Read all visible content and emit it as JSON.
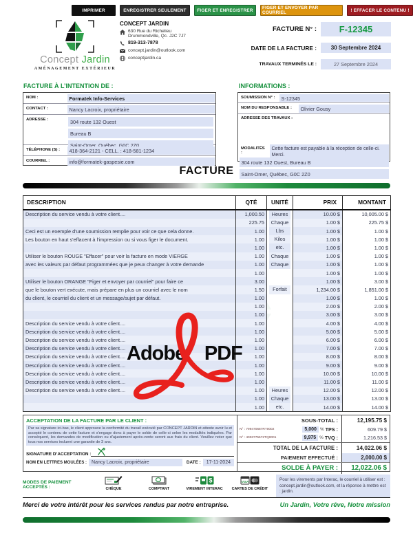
{
  "colors": {
    "accent_green": "#15903c",
    "button_green": "#2a9247",
    "button_orange": "#dd940e",
    "button_red": "#9e1c21",
    "field_bg": "#dbe2f5",
    "adobe_red": "#e8211d"
  },
  "buttons": [
    {
      "label": "IMPRIMER"
    },
    {
      "label": "ENREGISTRER SEULEMENT"
    },
    {
      "label": "FIGER ET ENREGISTRER"
    },
    {
      "label": "FIGER ET ENVOYER PAR COURRIEL"
    },
    {
      "label": "! EFFACER LE CONTENU !"
    }
  ],
  "company": {
    "logo_word_gray": "Concept",
    "logo_word_green": "Jardin",
    "tagline": "AMÉNAGEMENT EXTÉRIEUR",
    "name": "CONCEPT JARDIN",
    "address_line1": "630 Rue du Richelieu",
    "address_line2": "Drummondville, Qc. J2C 7J7",
    "phone": "819-313-7878",
    "email": "concept.jardin@outlook.com",
    "website": "conceptjardin.ca"
  },
  "meta": {
    "facture_label": "FACTURE N° :",
    "facture_no": "F-12345",
    "date_label": "DATE DE LA FACTURE :",
    "date": "30 Septembre 2024",
    "travaux_label": "TRAVAUX TERMINÉS LE :",
    "travaux_date": "27 Septembre 2024"
  },
  "client": {
    "heading": "FACTURE À L’INTENTION DE :",
    "nom_label": "NOM :",
    "nom": "Formatek Info-Services",
    "contact_label": "CONTACT :",
    "contact": "Nancy Lacroix, propriétaire",
    "adresse_label": "ADRESSE :",
    "adresse_lines": [
      "304 route 132 Ouest",
      "Bureau B",
      "Saint-Omer, Québec, G0C 2Z0"
    ],
    "tel_label": "TÉLÉPHONE (S) :",
    "tel": "418-364-2121 - CELL. : 418-581-1234",
    "courriel_label": "COURRIEL :",
    "courriel": "info@formatek-gaspesie.com"
  },
  "informations": {
    "heading": "INFORMATIONS :",
    "soumission_label": "SOUMISSION N° :",
    "soumission": "S-12345",
    "responsable_label": "NOM DU RESPONSABLE :",
    "responsable": "Olivier Gousy",
    "adresse_travaux_label": "ADRESSE DES TRAVAUX :",
    "adresse_travaux_lines": [
      "304 route 132 Ouest, Bureau B",
      "Saint-Omer, Québec, G0C 2Z0"
    ],
    "modalites_label": "MODALITÉS :",
    "modalites": "Cette facture est payable à la réception de celle-ci. Merci."
  },
  "facture_title": "FACTURE",
  "table": {
    "headers": [
      "DESCRIPTION",
      "QTÉ",
      "UNITÉ",
      "PRIX",
      "MONTANT"
    ],
    "rows": [
      {
        "desc": "Description du service vendu à votre client....",
        "qty": "1,000.50",
        "unit": "Heures",
        "price": "10.00 $",
        "amount": "10,005.00 $"
      },
      {
        "desc": "",
        "qty": "225.75",
        "unit": "Chaque",
        "price": "1.00 $",
        "amount": "225.75 $"
      },
      {
        "desc": "Ceci est un exemple d'une soumission remplie pour voir ce que cela donne.",
        "qty": "1.00",
        "unit": "Lbs",
        "price": "1.00 $",
        "amount": "1.00 $"
      },
      {
        "desc": "Les bouton en haut s'effacent à l'impression ou si vous figer le document.",
        "qty": "1.00",
        "unit": "Kilos",
        "price": "1.00 $",
        "amount": "1.00 $"
      },
      {
        "desc": "",
        "qty": "1.00",
        "unit": "etc.",
        "price": "1.00 $",
        "amount": "1.00 $"
      },
      {
        "desc": "Utiliser le bouton ROUGE \"Effacer\" pour voir la facture en mode VIERGE",
        "qty": "1.00",
        "unit": "Chaque",
        "price": "1.00 $",
        "amount": "1.00 $"
      },
      {
        "desc": "avec les valeurs par défaut programmées que je peux changer à votre demande",
        "qty": "1.00",
        "unit": "Chaque",
        "price": "1.00 $",
        "amount": "1.00 $"
      },
      {
        "desc": "",
        "qty": "1.00",
        "unit": "",
        "price": "1.00 $",
        "amount": "1.00 $"
      },
      {
        "desc": "Utiliser le bouton ORANGE \"Figer et envoyer par courriel\" pour faire ce",
        "qty": "3.00",
        "unit": "",
        "price": "1.00 $",
        "amount": "3.00 $"
      },
      {
        "desc": "que le bouton vert exécute, mais prépare en plus un courriel avec le nom",
        "qty": "1.50",
        "unit": "Forfait",
        "price": "1,234.00 $",
        "amount": "1,851.00 $"
      },
      {
        "desc": "du client, le courriel du client et un message/sujet par défaut.",
        "qty": "1.00",
        "unit": "",
        "price": "1.00 $",
        "amount": "1.00 $"
      },
      {
        "desc": "",
        "qty": "1.00",
        "unit": "",
        "price": "2.00 $",
        "amount": "2.00 $"
      },
      {
        "desc": "",
        "qty": "1.00",
        "unit": "",
        "price": "3.00 $",
        "amount": "3.00 $"
      },
      {
        "desc": "Description du service vendu à votre client....",
        "qty": "1.00",
        "unit": "",
        "price": "4.00 $",
        "amount": "4.00 $"
      },
      {
        "desc": "Description du service vendu à votre client....",
        "qty": "1.00",
        "unit": "",
        "price": "5.00 $",
        "amount": "5.00 $"
      },
      {
        "desc": "Description du service vendu à votre client....",
        "qty": "1.00",
        "unit": "",
        "price": "6.00 $",
        "amount": "6.00 $"
      },
      {
        "desc": "Description du service vendu à votre client....",
        "qty": "1.00",
        "unit": "",
        "price": "7.00 $",
        "amount": "7.00 $"
      },
      {
        "desc": "Description du service vendu à votre client....",
        "qty": "1.00",
        "unit": "",
        "price": "8.00 $",
        "amount": "8.00 $"
      },
      {
        "desc": "Description du service vendu à votre client....",
        "qty": "1.00",
        "unit": "",
        "price": "9.00 $",
        "amount": "9.00 $"
      },
      {
        "desc": "Description du service vendu à votre client....",
        "qty": "1.00",
        "unit": "",
        "price": "10.00 $",
        "amount": "10.00 $"
      },
      {
        "desc": "Description du service vendu à votre client....",
        "qty": "1.00",
        "unit": "",
        "price": "11.00 $",
        "amount": "11.00 $"
      },
      {
        "desc": "Description du service vendu à votre client....",
        "qty": "1.00",
        "unit": "Heures",
        "price": "12.00 $",
        "amount": "12.00 $"
      },
      {
        "desc": "",
        "qty": "1.00",
        "unit": "Chaque",
        "price": "13.00 $",
        "amount": "13.00 $"
      },
      {
        "desc": "",
        "qty": "1.00",
        "unit": "etc.",
        "price": "14.00 $",
        "amount": "14.00 $"
      }
    ]
  },
  "watermark": {
    "word1": "Adobe",
    "reg": "®",
    "word2": "PDF"
  },
  "acceptance": {
    "heading": "ACCEPTATION DE LA FACTURE PAR LE CLIENT :",
    "paragraph": "Par sa signature ici-bas, le client approuve la conformité du travail exécuté par CONCEPT JARDIN et atteste avoir lu et accepté le contenu de cette facture et s'engage donc à payer le solde de celle-ci selon les modalités indiquées. Par conséquent, les demandes de modification ou d'ajustement après-vente seront aux frais du client. Veuillez noter que tous nos services incluent une garantie de 3 ans.",
    "signature_label": "SIGNATURE D’ACCEPTATION :",
    "nom_label": "NOM EN LETTRES MOULÉES :",
    "nom": "Nancy Lacroix, propriétaire",
    "date_label": "DATE :",
    "date": "17-11-2024"
  },
  "totals": {
    "sous_total_label": "SOUS-TOTAL :",
    "sous_total": "12,195.75 $",
    "tps_no": "N° : 799470687RT0002",
    "tps_rate": "5,000",
    "tps_pct": "%",
    "tps_label": "TPS :",
    "tps": "609.79 $",
    "tvq_no": "N° : 4003775572TQ0001",
    "tvq_rate": "9,975",
    "tvq_pct": "%",
    "tvq_label": "TVQ :",
    "tvq": "1,216.53 $",
    "total_label": "TOTAL DE LA FACTURE :",
    "total": "14,022.06 $",
    "paiement_label": "PAIEMENT EFFECTUÉ :",
    "paiement": "2,000.00 $",
    "solde_label": "SOLDE À PAYER :",
    "solde": "12,022.06 $"
  },
  "payment": {
    "heading": "MODES DE PAIEMENT ACCEPTÉS :",
    "methods": [
      "CHÈQUE",
      "COMPTANT",
      "VIREMENT INTERAC",
      "CARTES DE CRÉDIT"
    ],
    "note_line1": "Pour les virements par Interac, le courriel à utiliser est :",
    "note_line2": "concept.jardin@outlook.com, et la réponse à mettre est : jardin."
  },
  "footer": {
    "left": "Merci de votre intérêt pour les services rendus par notre entreprise.",
    "right": "Un Jardin, Votre rêve, Notre mission"
  }
}
